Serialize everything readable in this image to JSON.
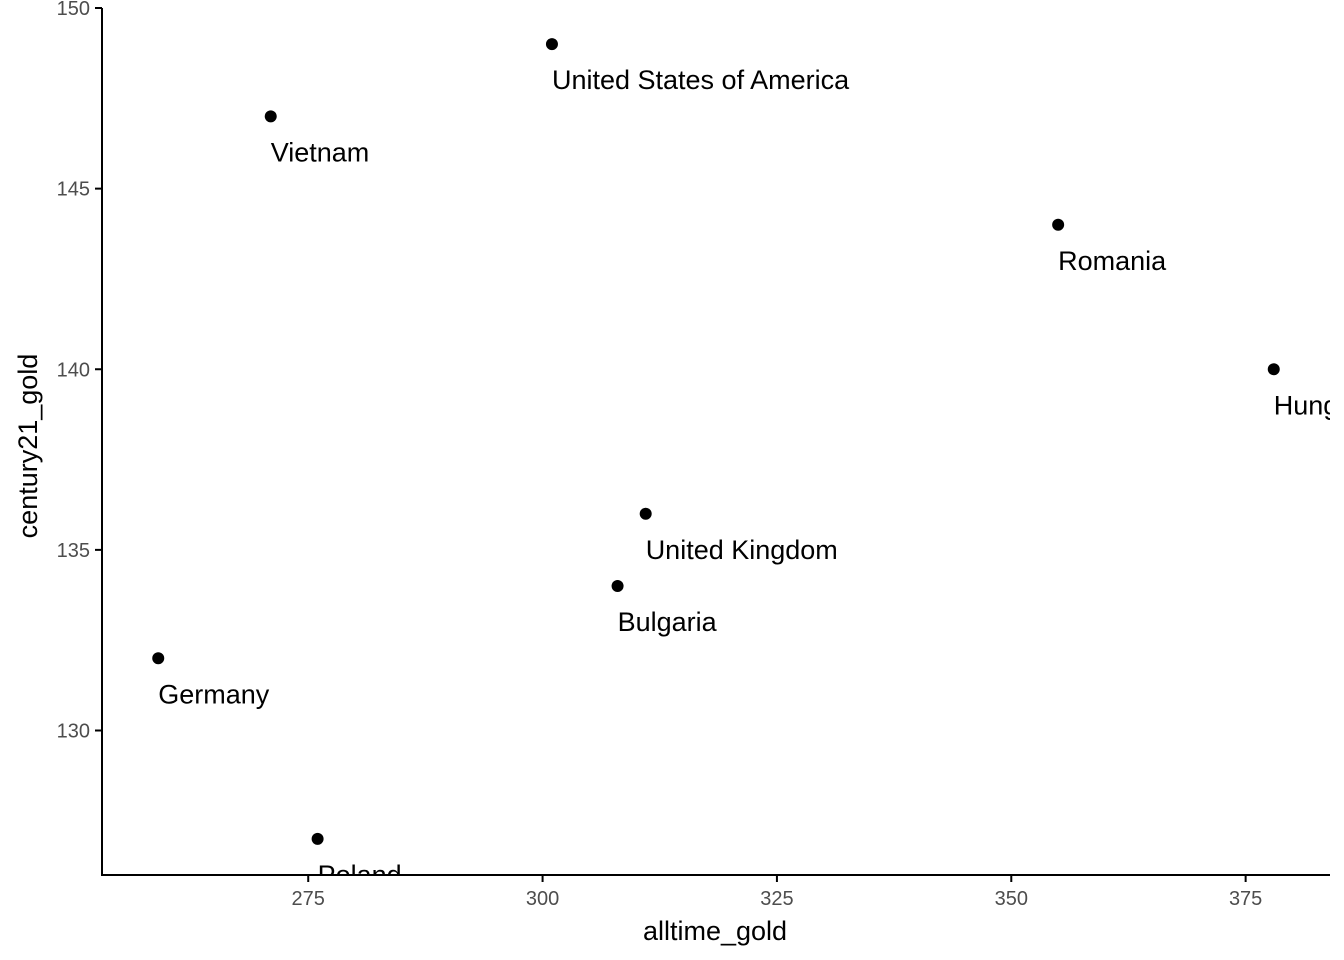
{
  "chart_data": {
    "type": "scatter",
    "title": "",
    "xlabel": "alltime_gold",
    "ylabel": "century21_gold",
    "xlim": [
      253,
      384
    ],
    "ylim": [
      126,
      150
    ],
    "x_ticks": [
      275,
      300,
      325,
      350,
      375
    ],
    "y_ticks": [
      130,
      135,
      140,
      145,
      150
    ],
    "grid": false,
    "legend": "none",
    "point_color": "#000000",
    "points": [
      {
        "label": "United States of America",
        "x": 301,
        "y": 149
      },
      {
        "label": "Vietnam",
        "x": 271,
        "y": 147
      },
      {
        "label": "Romania",
        "x": 355,
        "y": 144
      },
      {
        "label": "Hungary",
        "x": 378,
        "y": 140
      },
      {
        "label": "United Kingdom",
        "x": 311,
        "y": 136
      },
      {
        "label": "Bulgaria",
        "x": 308,
        "y": 134
      },
      {
        "label": "Germany",
        "x": 259,
        "y": 132
      },
      {
        "label": "Poland",
        "x": 276,
        "y": 127
      }
    ]
  }
}
